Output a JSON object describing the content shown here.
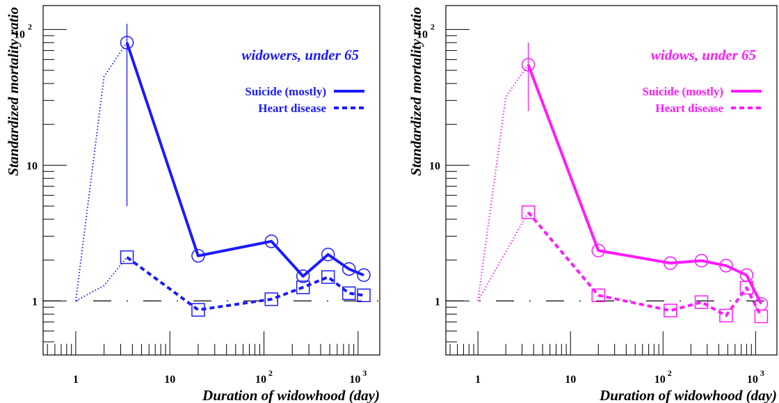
{
  "chart_data": [
    {
      "type": "line",
      "title": "widowers, under 65",
      "color": "#1a1aff",
      "xlabel": "Duration of widowhood (day)",
      "ylabel": "Standardized mortality ratio",
      "x_scale": "log",
      "y_scale": "log",
      "xlim": [
        0.45,
        1700
      ],
      "ylim": [
        0.4,
        150
      ],
      "x_ticks": [
        "1",
        "10",
        "10 2",
        "10 3"
      ],
      "y_ticks": [
        "1",
        "10",
        "10 2"
      ],
      "legend_position": "top-right",
      "reference_line": 1,
      "series": [
        {
          "name": "Suicide (mostly)",
          "style": "solid",
          "marker": "circle",
          "x": [
            3.5,
            20,
            120,
            260,
            480,
            800,
            1150
          ],
          "y": [
            80,
            2.15,
            2.75,
            1.52,
            2.2,
            1.72,
            1.55
          ],
          "error_bar": {
            "x": 3.5,
            "low": 5,
            "high": 110
          },
          "lead_in": {
            "x": [
              1,
              2,
              3.5
            ],
            "y": [
              1,
              45,
              80
            ]
          }
        },
        {
          "name": "Heart disease",
          "style": "dashed",
          "marker": "square",
          "x": [
            3.5,
            20,
            120,
            260,
            480,
            800,
            1150
          ],
          "y": [
            2.1,
            0.86,
            1.03,
            1.26,
            1.5,
            1.14,
            1.1
          ],
          "lead_in": {
            "x": [
              1,
              2,
              3.5
            ],
            "y": [
              1,
              1.3,
              2.1
            ]
          }
        }
      ]
    },
    {
      "type": "line",
      "title": "widows, under 65",
      "color": "#ff1aff",
      "xlabel": "Duration of widowhood (day)",
      "ylabel": "Standardized mortality ratio",
      "x_scale": "log",
      "y_scale": "log",
      "xlim": [
        0.45,
        1700
      ],
      "ylim": [
        0.4,
        150
      ],
      "x_ticks": [
        "1",
        "10",
        "10 2",
        "10 3"
      ],
      "y_ticks": [
        "1",
        "10",
        "10 2"
      ],
      "legend_position": "top-right",
      "reference_line": 1,
      "series": [
        {
          "name": "Suicide (mostly)",
          "style": "solid",
          "marker": "circle",
          "x": [
            3.5,
            20,
            120,
            260,
            480,
            800,
            1150
          ],
          "y": [
            55,
            2.35,
            1.9,
            1.98,
            1.82,
            1.55,
            0.95
          ],
          "error_bar": {
            "x": 3.5,
            "low": 25,
            "high": 80
          },
          "lead_in": {
            "x": [
              1,
              2,
              3.5
            ],
            "y": [
              1,
              32,
              55
            ]
          }
        },
        {
          "name": "Heart disease",
          "style": "dashed",
          "marker": "square",
          "x": [
            3.5,
            20,
            120,
            260,
            480,
            800,
            1150
          ],
          "y": [
            4.5,
            1.1,
            0.85,
            0.98,
            0.78,
            1.25,
            0.77
          ],
          "lead_in": {
            "x": [
              1,
              2,
              3.5
            ],
            "y": [
              1,
              2.3,
              4.5
            ]
          }
        }
      ]
    }
  ]
}
